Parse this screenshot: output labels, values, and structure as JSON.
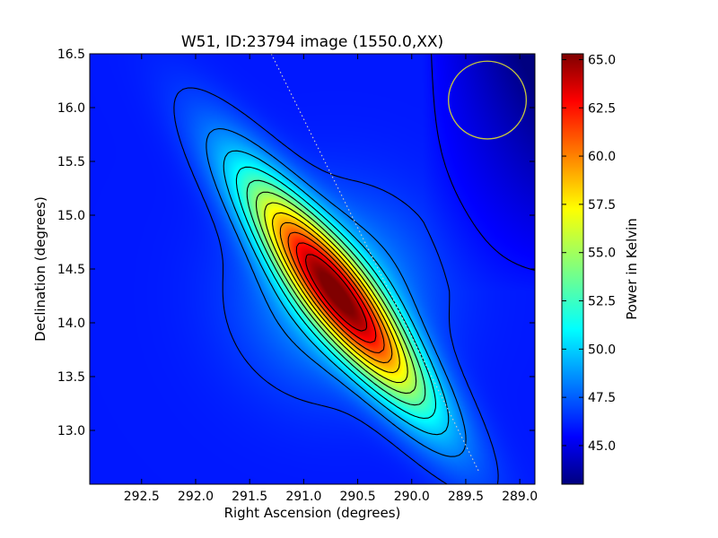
{
  "chart_data": {
    "type": "heatmap",
    "title": "W51, ID:23794 image (1550.0,XX)",
    "xlabel": "Right Ascension (degrees)",
    "ylabel": "Declination (degrees)",
    "colorbar_label": "Power in Kelvin",
    "xlim": [
      292.98,
      288.86
    ],
    "ylim": [
      12.5,
      16.5
    ],
    "x_ticks": [
      {
        "value": 292.5,
        "label": "292.5"
      },
      {
        "value": 292.0,
        "label": "292.0"
      },
      {
        "value": 291.5,
        "label": "291.5"
      },
      {
        "value": 291.0,
        "label": "291.0"
      },
      {
        "value": 290.5,
        "label": "290.5"
      },
      {
        "value": 290.0,
        "label": "290.0"
      },
      {
        "value": 289.5,
        "label": "289.5"
      },
      {
        "value": 289.0,
        "label": "289.0"
      }
    ],
    "y_ticks": [
      {
        "value": 16.5,
        "label": "16.5"
      },
      {
        "value": 16.0,
        "label": "16.0"
      },
      {
        "value": 15.5,
        "label": "15.5"
      },
      {
        "value": 15.0,
        "label": "15.0"
      },
      {
        "value": 14.5,
        "label": "14.5"
      },
      {
        "value": 14.0,
        "label": "14.0"
      },
      {
        "value": 13.5,
        "label": "13.5"
      },
      {
        "value": 13.0,
        "label": "13.0"
      }
    ],
    "colorbar_range": [
      43.0,
      65.3
    ],
    "colorbar_ticks": [
      {
        "value": 65.0,
        "label": "65.0"
      },
      {
        "value": 62.5,
        "label": "62.5"
      },
      {
        "value": 60.0,
        "label": "60.0"
      },
      {
        "value": 57.5,
        "label": "57.5"
      },
      {
        "value": 55.0,
        "label": "55.0"
      },
      {
        "value": 52.5,
        "label": "52.5"
      },
      {
        "value": 50.0,
        "label": "50.0"
      },
      {
        "value": 47.5,
        "label": "47.5"
      },
      {
        "value": 45.0,
        "label": "45.0"
      }
    ],
    "colormap": "jet",
    "peak": {
      "ra": 290.7,
      "dec": 14.28,
      "value": 65.0
    },
    "contour_levels": [
      46.0,
      47.0,
      48.5,
      50.0,
      51.5,
      53.0,
      54.5,
      56.0,
      57.5,
      59.0,
      60.5,
      62.0,
      63.5
    ],
    "beam_circle": {
      "ra": 289.3,
      "dec": 16.07,
      "radius_deg": 0.36,
      "color": "#c8c83c"
    },
    "scan_line": {
      "ra_start": 291.3,
      "dec_start": 16.5,
      "ra_end": 289.38,
      "dec_end": 12.62,
      "color": "#cccccc"
    },
    "grid": false
  }
}
